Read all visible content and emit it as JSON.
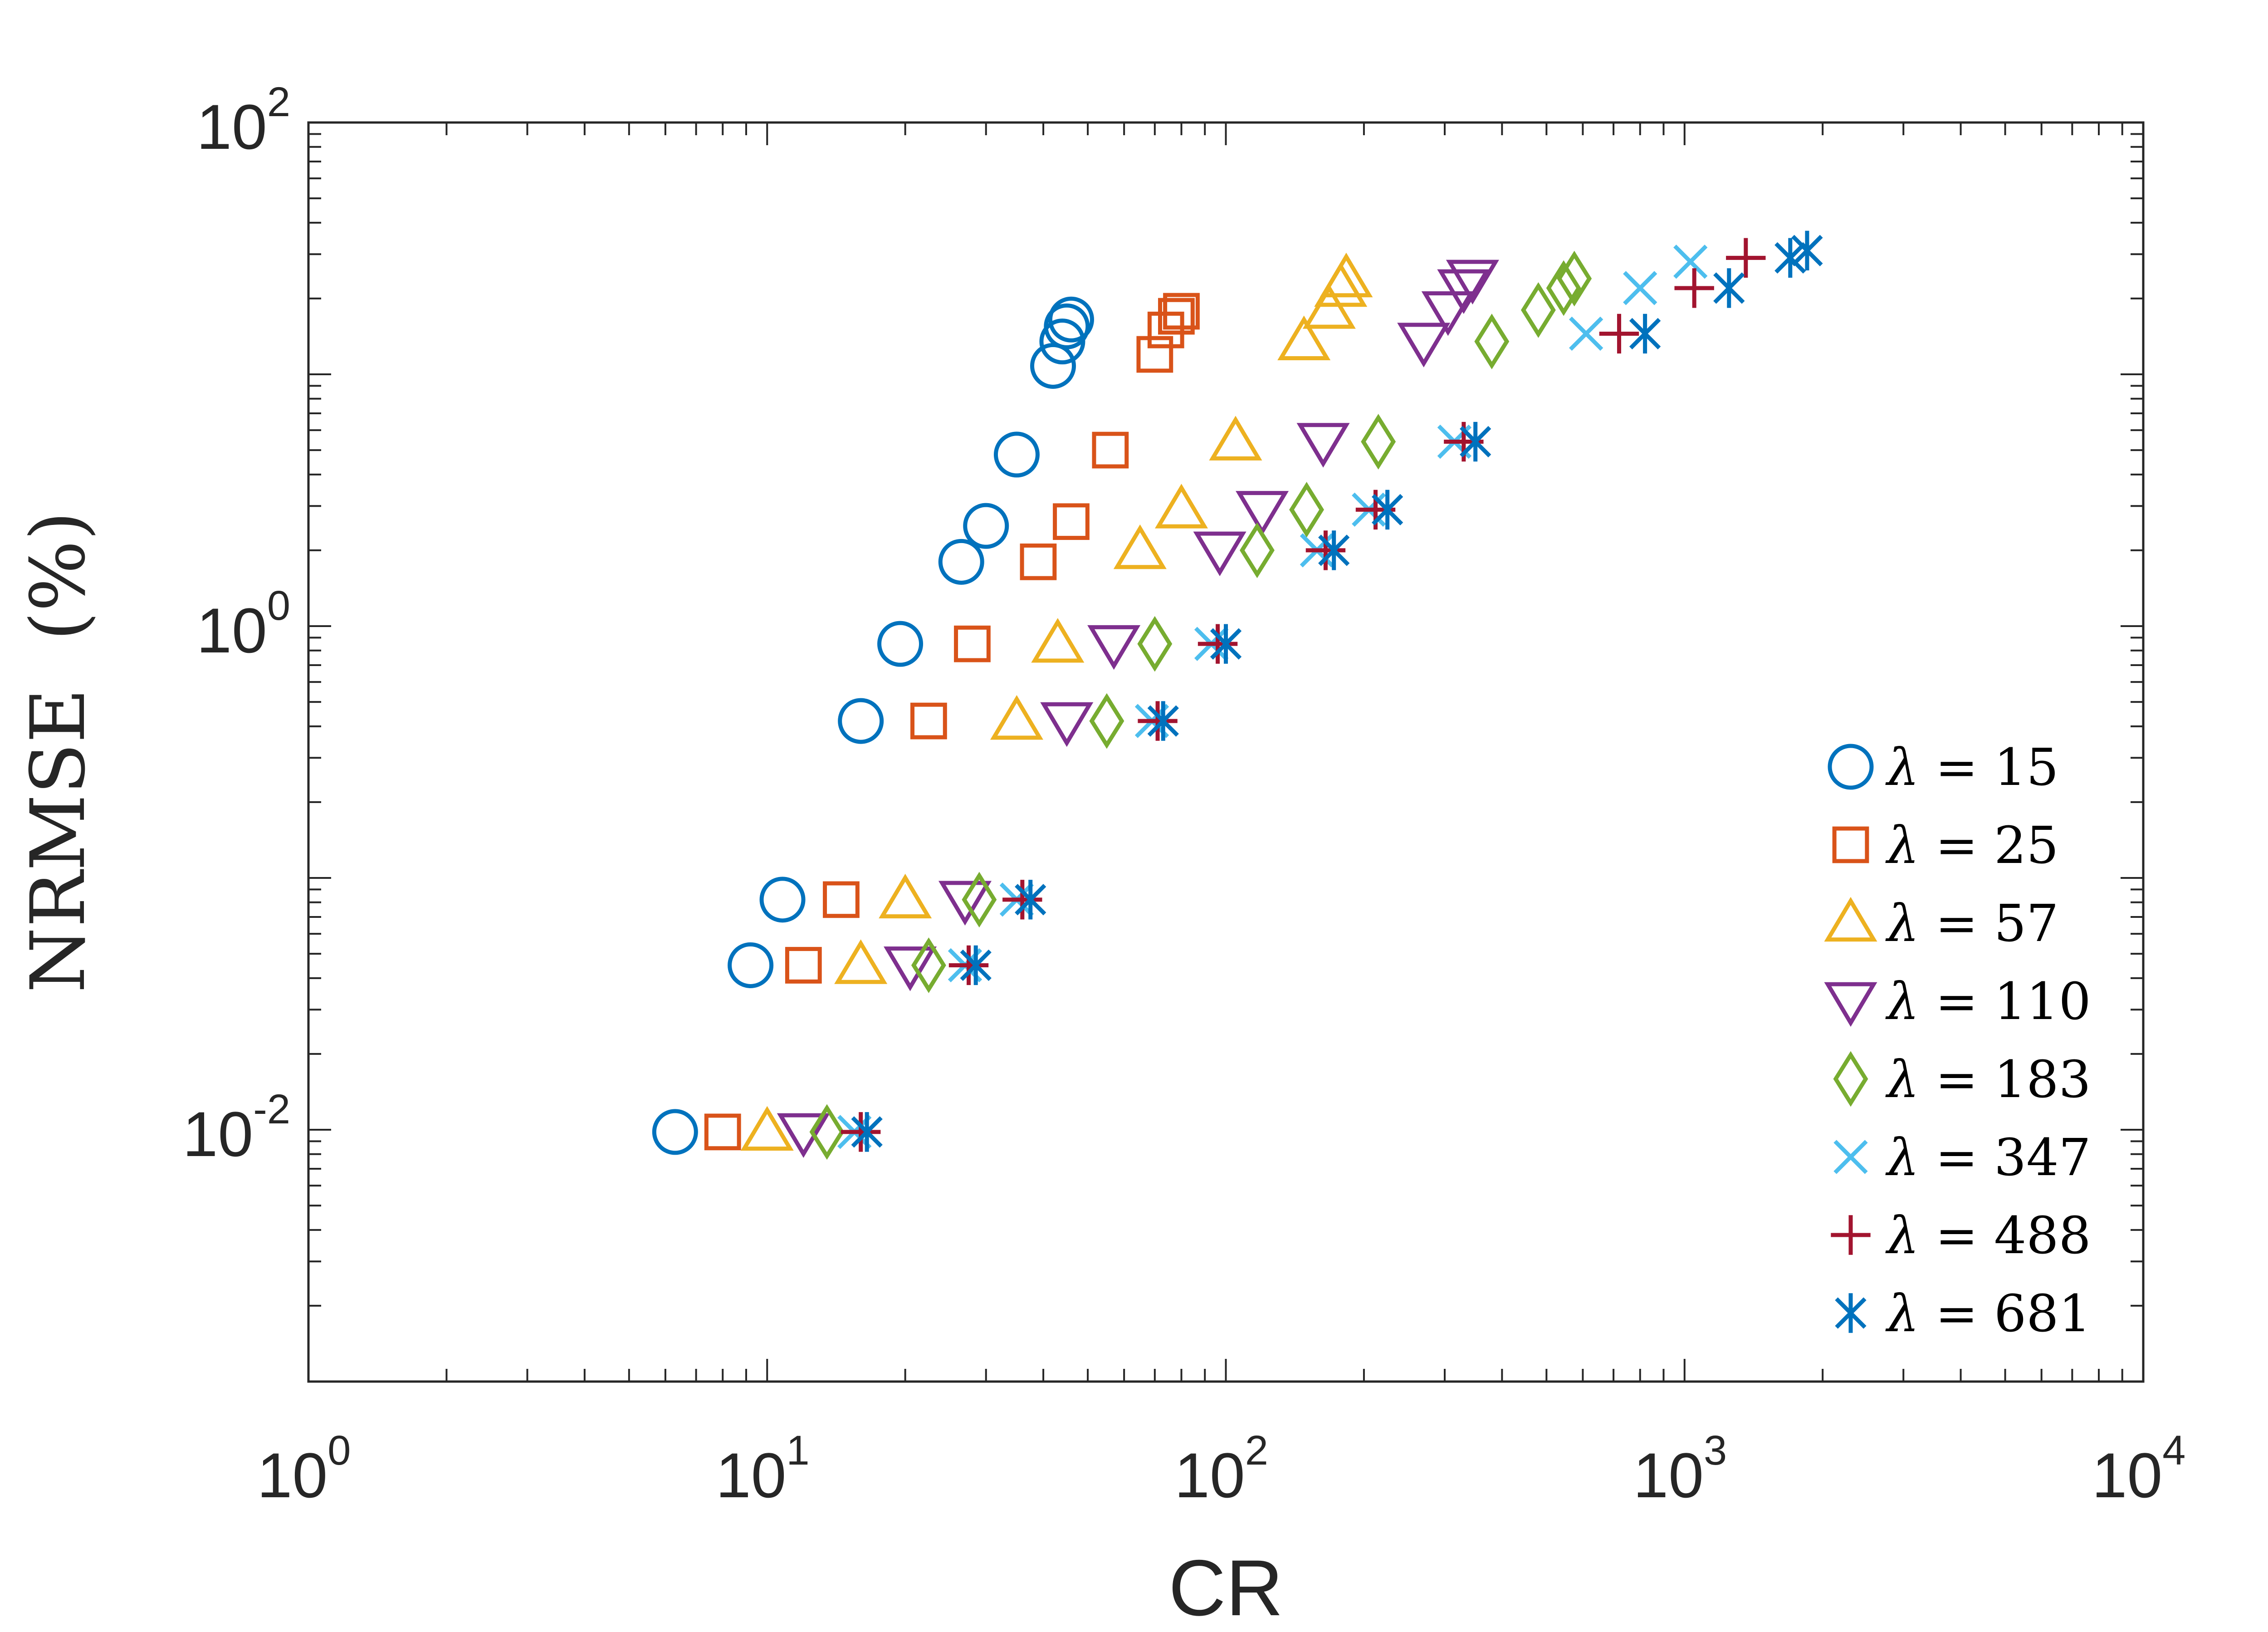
{
  "chart_data": {
    "type": "scatter",
    "title": "",
    "xlabel": "CR",
    "ylabel": "NRMSE  (%)",
    "xscale": "log",
    "yscale": "log",
    "xlim": [
      1,
      10000
    ],
    "ylim": [
      0.001,
      100
    ],
    "grid": false,
    "legend_position": "bottom-right",
    "xticks": [
      {
        "base": "10",
        "exp": "0",
        "value": 1
      },
      {
        "base": "10",
        "exp": "1",
        "value": 10
      },
      {
        "base": "10",
        "exp": "2",
        "value": 100
      },
      {
        "base": "10",
        "exp": "3",
        "value": 1000
      },
      {
        "base": "10",
        "exp": "4",
        "value": 10000
      }
    ],
    "yticks": [
      {
        "base": "10",
        "exp": "-2",
        "value": 0.01
      },
      {
        "base": "10",
        "exp": "0",
        "value": 1
      },
      {
        "base": "10",
        "exp": "2",
        "value": 100
      }
    ],
    "series": [
      {
        "name": "λ = 15",
        "lambda_symbol": "λ",
        "eq": " = 15",
        "marker": "circle",
        "color": "#0072BD",
        "points": [
          [
            6.3,
            0.0098
          ],
          [
            9.2,
            0.045
          ],
          [
            10.8,
            0.082
          ],
          [
            16.0,
            0.42
          ],
          [
            19.5,
            0.85
          ],
          [
            26.5,
            1.8
          ],
          [
            30.0,
            2.5
          ],
          [
            35.0,
            4.8
          ],
          [
            42.0,
            10.8
          ],
          [
            44.0,
            13.5
          ],
          [
            45.0,
            15.5
          ],
          [
            46.0,
            16.5
          ]
        ]
      },
      {
        "name": "λ = 25",
        "lambda_symbol": "λ",
        "eq": " = 25",
        "marker": "square",
        "color": "#D95319",
        "points": [
          [
            8.0,
            0.0098
          ],
          [
            12.0,
            0.045
          ],
          [
            14.5,
            0.082
          ],
          [
            22.5,
            0.42
          ],
          [
            28.0,
            0.85
          ],
          [
            39.0,
            1.8
          ],
          [
            46.0,
            2.6
          ],
          [
            56.0,
            5.0
          ],
          [
            70.0,
            12.0
          ],
          [
            74.0,
            15.0
          ],
          [
            78.0,
            17.0
          ],
          [
            80.0,
            17.8
          ]
        ]
      },
      {
        "name": "λ = 57",
        "lambda_symbol": "λ",
        "eq": " = 57",
        "marker": "triangle-up",
        "color": "#EDB120",
        "points": [
          [
            10.0,
            0.0098
          ],
          [
            16.0,
            0.045
          ],
          [
            20.0,
            0.082
          ],
          [
            35.0,
            0.42
          ],
          [
            43.0,
            0.85
          ],
          [
            65.0,
            2.0
          ],
          [
            80.0,
            2.9
          ],
          [
            105.0,
            5.4
          ],
          [
            148.0,
            13.5
          ],
          [
            168.0,
            18.0
          ],
          [
            178.0,
            22.0
          ],
          [
            183.0,
            24.0
          ]
        ]
      },
      {
        "name": "λ = 110",
        "lambda_symbol": "λ",
        "eq": " = 110",
        "marker": "triangle-down",
        "color": "#7E2F8E",
        "points": [
          [
            12.0,
            0.0098
          ],
          [
            20.5,
            0.045
          ],
          [
            27.0,
            0.082
          ],
          [
            45.0,
            0.42
          ],
          [
            57.0,
            0.85
          ],
          [
            97.0,
            2.0
          ],
          [
            120.0,
            2.9
          ],
          [
            163.0,
            5.4
          ],
          [
            270.0,
            13.5
          ],
          [
            305.0,
            18.0
          ],
          [
            330.0,
            22.0
          ],
          [
            345.0,
            24.0
          ]
        ]
      },
      {
        "name": "λ = 183",
        "lambda_symbol": "λ",
        "eq": " = 183",
        "marker": "diamond",
        "color": "#77AC30",
        "points": [
          [
            13.5,
            0.0098
          ],
          [
            22.5,
            0.045
          ],
          [
            29.0,
            0.082
          ],
          [
            55.0,
            0.42
          ],
          [
            70.0,
            0.85
          ],
          [
            117.0,
            2.0
          ],
          [
            150.0,
            2.9
          ],
          [
            215.0,
            5.4
          ],
          [
            380.0,
            13.5
          ],
          [
            480.0,
            18.0
          ],
          [
            545.0,
            22.0
          ],
          [
            575.0,
            24.0
          ]
        ]
      },
      {
        "name": "λ = 347",
        "lambda_symbol": "λ",
        "eq": " = 347",
        "marker": "x",
        "color": "#4DBEEE",
        "points": [
          [
            15.5,
            0.0098
          ],
          [
            27.0,
            0.045
          ],
          [
            35.0,
            0.082
          ],
          [
            69.0,
            0.42
          ],
          [
            93.0,
            0.85
          ],
          [
            158.0,
            2.0
          ],
          [
            205.0,
            2.9
          ],
          [
            315.0,
            5.4
          ],
          [
            610.0,
            14.5
          ],
          [
            800.0,
            22.0
          ],
          [
            1030.0,
            28.0
          ]
        ]
      },
      {
        "name": "λ = 488",
        "lambda_symbol": "λ",
        "eq": " = 488",
        "marker": "plus",
        "color": "#A2142F",
        "points": [
          [
            16.0,
            0.0098
          ],
          [
            27.5,
            0.045
          ],
          [
            36.0,
            0.082
          ],
          [
            71.0,
            0.42
          ],
          [
            96.0,
            0.85
          ],
          [
            165.0,
            2.0
          ],
          [
            212.0,
            2.9
          ],
          [
            330.0,
            5.4
          ],
          [
            720.0,
            14.5
          ],
          [
            1050.0,
            22.0
          ],
          [
            1360.0,
            29.0
          ]
        ]
      },
      {
        "name": "λ = 681",
        "lambda_symbol": "λ",
        "eq": " = 681",
        "marker": "asterisk",
        "color": "#0072BD",
        "points": [
          [
            16.5,
            0.0098
          ],
          [
            28.5,
            0.045
          ],
          [
            37.5,
            0.082
          ],
          [
            73.0,
            0.42
          ],
          [
            100.0,
            0.85
          ],
          [
            172.0,
            2.0
          ],
          [
            225.0,
            2.9
          ],
          [
            350.0,
            5.4
          ],
          [
            820.0,
            14.5
          ],
          [
            1250.0,
            22.0
          ],
          [
            1700.0,
            29.0
          ],
          [
            1850.0,
            31.0
          ]
        ]
      }
    ]
  }
}
